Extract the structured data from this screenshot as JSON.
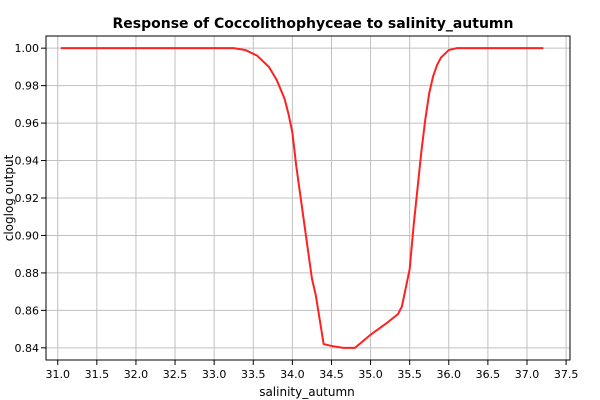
{
  "chart_data": {
    "type": "line",
    "title": "Response of Coccolithophyceae to salinity_autumn",
    "xlabel": "salinity_autumn",
    "ylabel": "cloglog output",
    "xlim": [
      30.85,
      37.55
    ],
    "ylim": [
      0.8335,
      1.0065
    ],
    "xticks": [
      "31.0",
      "31.5",
      "32.0",
      "32.5",
      "33.0",
      "33.5",
      "34.0",
      "34.5",
      "35.0",
      "35.5",
      "36.0",
      "36.5",
      "37.0",
      "37.5"
    ],
    "yticks": [
      "0.84",
      "0.86",
      "0.88",
      "0.90",
      "0.92",
      "0.94",
      "0.96",
      "0.98",
      "1.00"
    ],
    "grid": true,
    "line_color": "#ff2020",
    "series": [
      {
        "x": [
          31.05,
          33.25,
          33.4,
          33.55,
          33.7,
          33.8,
          33.9,
          33.95,
          34.0,
          34.05,
          34.1,
          34.15,
          34.2,
          34.25,
          34.3,
          34.35,
          34.4,
          34.5,
          34.65,
          34.8,
          35.0,
          35.2,
          35.35,
          35.4,
          35.5,
          35.55,
          35.6,
          35.65,
          35.7,
          35.75,
          35.8,
          35.85,
          35.9,
          35.95,
          36.0,
          36.1,
          36.2,
          36.35,
          37.2
        ],
        "y": [
          1.0,
          1.0,
          0.999,
          0.996,
          0.99,
          0.983,
          0.973,
          0.965,
          0.955,
          0.937,
          0.922,
          0.907,
          0.892,
          0.877,
          0.868,
          0.855,
          0.842,
          0.841,
          0.84,
          0.84,
          0.847,
          0.853,
          0.858,
          0.862,
          0.882,
          0.905,
          0.925,
          0.945,
          0.962,
          0.976,
          0.985,
          0.991,
          0.995,
          0.997,
          0.999,
          1.0,
          1.0,
          1.0,
          1.0
        ]
      }
    ]
  }
}
